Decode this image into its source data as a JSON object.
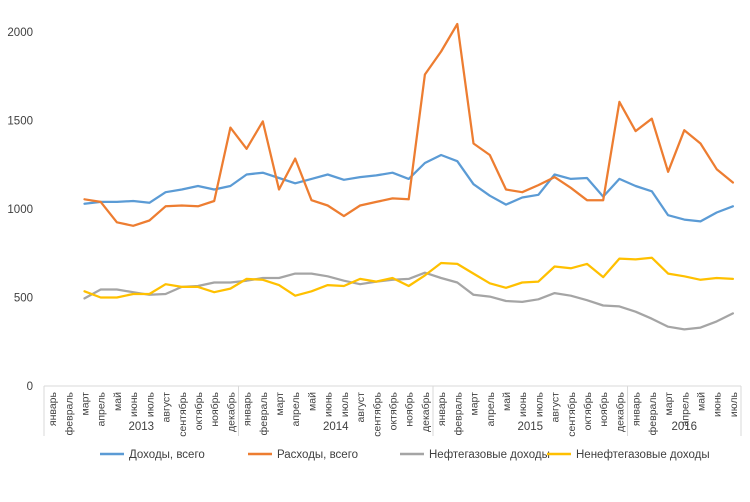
{
  "chart_data": {
    "type": "line",
    "title": "",
    "xlabel": "",
    "ylabel": "",
    "ylim": [
      0,
      2000
    ],
    "yticks": [
      "0",
      "500",
      "1000",
      "1500",
      "2000"
    ],
    "grid": false,
    "legend_position": "bottom",
    "categories": [
      "январь",
      "февраль",
      "март",
      "апрель",
      "май",
      "июнь",
      "июль",
      "август",
      "сентябрь",
      "октябрь",
      "ноябрь",
      "декабрь",
      "январь",
      "февраль",
      "март",
      "апрель",
      "май",
      "июнь",
      "июль",
      "август",
      "сентябрь",
      "октябрь",
      "ноябрь",
      "декабрь",
      "январь",
      "февраль",
      "март",
      "апрель",
      "май",
      "июнь",
      "июль",
      "август",
      "сентябрь",
      "октябрь",
      "ноябрь",
      "декабрь",
      "январь",
      "февраль",
      "март",
      "апрель",
      "май",
      "июнь",
      "июль"
    ],
    "year_groups": [
      {
        "label": "2013",
        "count": 12
      },
      {
        "label": "2014",
        "count": 12
      },
      {
        "label": "2015",
        "count": 12
      },
      {
        "label": "2016",
        "count": 7
      }
    ],
    "series": [
      {
        "name": "Доходы, всего",
        "color": "#5B9BD5",
        "values": [
          null,
          null,
          1030,
          1040,
          1040,
          1045,
          1035,
          1095,
          1110,
          1130,
          1110,
          1130,
          1195,
          1205,
          1175,
          1145,
          1170,
          1195,
          1165,
          1180,
          1190,
          1205,
          1170,
          1260,
          1305,
          1270,
          1140,
          1075,
          1025,
          1065,
          1080,
          1195,
          1170,
          1175,
          1070,
          1170,
          1130,
          1100,
          965,
          940,
          930,
          980,
          1015
        ]
      },
      {
        "name": "Расходы, всего",
        "color": "#ED7D31",
        "values": [
          null,
          null,
          1055,
          1040,
          925,
          905,
          935,
          1015,
          1020,
          1015,
          1045,
          1460,
          1340,
          1495,
          1110,
          1285,
          1050,
          1020,
          960,
          1020,
          1040,
          1060,
          1055,
          1760,
          1890,
          2045,
          1370,
          1305,
          1110,
          1095,
          1135,
          1180,
          1120,
          1050,
          1050,
          1605,
          1440,
          1510,
          1210,
          1445,
          1370,
          1225,
          1150
        ]
      },
      {
        "name": "Нефтегазовые доходы",
        "color": "#A5A5A5",
        "values": [
          null,
          null,
          495,
          545,
          545,
          530,
          515,
          520,
          560,
          565,
          585,
          585,
          595,
          610,
          610,
          635,
          635,
          620,
          595,
          575,
          590,
          600,
          605,
          640,
          610,
          585,
          515,
          505,
          480,
          475,
          490,
          525,
          510,
          485,
          455,
          450,
          420,
          380,
          335,
          320,
          330,
          365,
          410
        ]
      },
      {
        "name": "Ненефтегазовые доходы",
        "color": "#FFC000",
        "values": [
          null,
          null,
          535,
          500,
          500,
          520,
          520,
          575,
          560,
          560,
          530,
          550,
          605,
          600,
          570,
          510,
          535,
          570,
          565,
          605,
          590,
          610,
          565,
          625,
          695,
          690,
          635,
          580,
          555,
          585,
          590,
          675,
          665,
          690,
          615,
          720,
          715,
          725,
          635,
          620,
          600,
          610,
          605
        ]
      }
    ]
  }
}
